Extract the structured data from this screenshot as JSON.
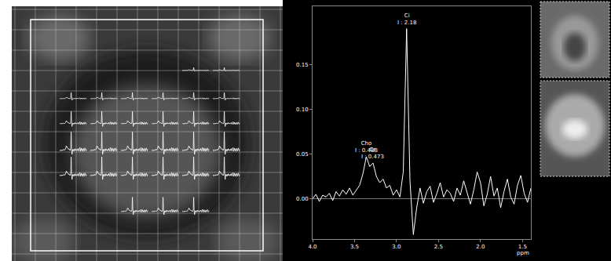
{
  "chart_data": {
    "type": "line",
    "xlabel": "ppm",
    "color": "#ffffff",
    "grid": false,
    "x": [
      4.0,
      3.96,
      3.92,
      3.88,
      3.84,
      3.8,
      3.76,
      3.72,
      3.68,
      3.64,
      3.6,
      3.56,
      3.52,
      3.48,
      3.44,
      3.4,
      3.36,
      3.32,
      3.28,
      3.24,
      3.2,
      3.16,
      3.12,
      3.08,
      3.04,
      3.0,
      2.96,
      2.92,
      2.88,
      2.84,
      2.8,
      2.76,
      2.72,
      2.68,
      2.64,
      2.6,
      2.56,
      2.52,
      2.48,
      2.44,
      2.4,
      2.36,
      2.32,
      2.28,
      2.24,
      2.2,
      2.16,
      2.12,
      2.08,
      2.04,
      2.0,
      1.96,
      1.92,
      1.88,
      1.84,
      1.8,
      1.76,
      1.72,
      1.68,
      1.64,
      1.6,
      1.56,
      1.52,
      1.48,
      1.44,
      1.4
    ],
    "values": [
      0.0,
      0.005,
      -0.003,
      0.004,
      0.002,
      0.006,
      -0.002,
      0.008,
      0.003,
      0.01,
      0.005,
      0.012,
      0.004,
      0.009,
      0.015,
      0.028,
      0.047,
      0.036,
      0.04,
      0.025,
      0.018,
      0.022,
      0.012,
      0.015,
      0.004,
      0.01,
      0.002,
      0.03,
      0.19,
      0.02,
      -0.04,
      -0.01,
      0.012,
      -0.005,
      0.008,
      0.014,
      -0.004,
      0.006,
      0.018,
      0.002,
      0.01,
      0.006,
      -0.003,
      0.012,
      0.004,
      0.02,
      0.008,
      -0.006,
      0.01,
      0.03,
      0.018,
      -0.008,
      0.005,
      0.025,
      0.003,
      0.012,
      -0.01,
      0.008,
      0.022,
      0.002,
      -0.006,
      0.015,
      0.026,
      0.006,
      -0.004,
      0.012
    ],
    "xlim": [
      4.0,
      1.4
    ],
    "xticks": [
      {
        "value": 4.0,
        "label": "4.0"
      },
      {
        "value": 3.5,
        "label": "3.5"
      },
      {
        "value": 3.0,
        "label": "3.0"
      },
      {
        "value": 2.5,
        "label": "2.5"
      },
      {
        "value": 2.0,
        "label": "2.0"
      },
      {
        "value": 1.5,
        "label": "1.5"
      }
    ],
    "ylim": [
      -0.045,
      0.215
    ],
    "yticks": [
      {
        "value": 0,
        "label": "0.00"
      },
      {
        "value": 0.05,
        "label": "0.05"
      },
      {
        "value": 0.1,
        "label": "0.10"
      },
      {
        "value": 0.15,
        "label": "0.15"
      }
    ],
    "annotations": [
      {
        "text": "Cho",
        "integral": "I : 0.488",
        "x": 3.36,
        "y": 0.047
      },
      {
        "text": "Cr",
        "integral": "I : 0.473",
        "x": 3.28,
        "y": 0.04
      },
      {
        "text": "Ci",
        "integral": "I : 2.18",
        "x": 2.88,
        "y": 0.19
      }
    ]
  }
}
